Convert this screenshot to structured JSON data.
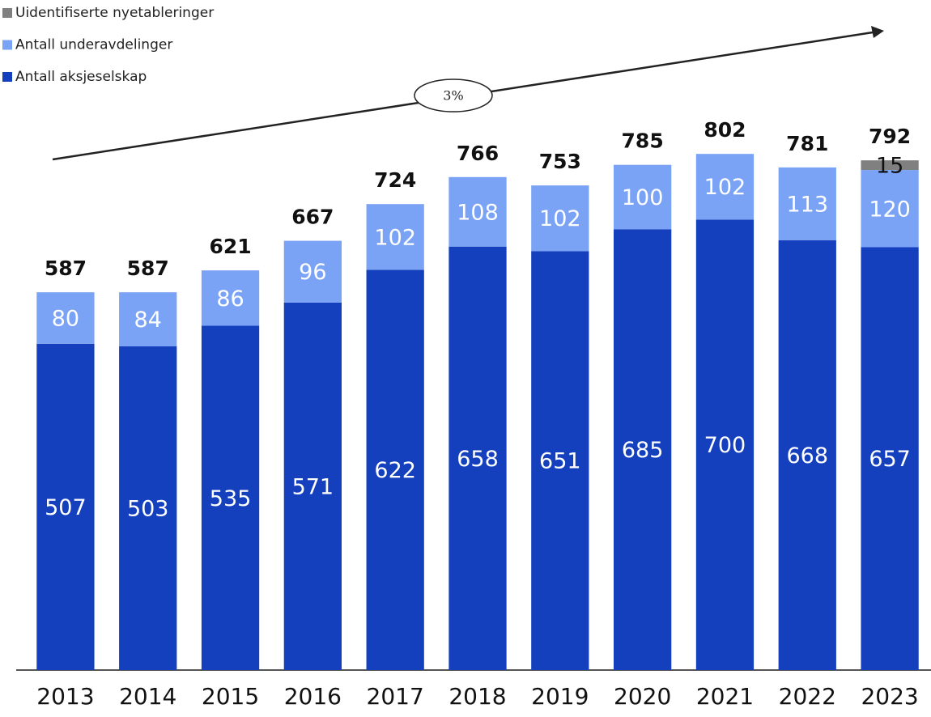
{
  "chart_data": {
    "type": "stacked_bar",
    "categories": [
      "2013",
      "2014",
      "2015",
      "2016",
      "2017",
      "2018",
      "2019",
      "2020",
      "2021",
      "2022",
      "2023"
    ],
    "series": [
      {
        "name": "Antall aksjeselskap",
        "color": "#1440be",
        "label_color": "#ffffff",
        "values": [
          507,
          503,
          535,
          571,
          622,
          658,
          651,
          685,
          700,
          668,
          657
        ]
      },
      {
        "name": "Antall underavdelinger",
        "color": "#7ba3f5",
        "label_color": "#ffffff",
        "values": [
          80,
          84,
          86,
          96,
          102,
          108,
          102,
          100,
          102,
          113,
          120
        ]
      },
      {
        "name": "Uidentifiserte nyetableringer",
        "color": "#808080",
        "label_color": "#111111",
        "values": [
          null,
          null,
          null,
          null,
          null,
          null,
          null,
          null,
          null,
          null,
          15
        ]
      }
    ],
    "totals": [
      587,
      587,
      621,
      667,
      724,
      766,
      753,
      785,
      802,
      781,
      792
    ],
    "annotation": "3%",
    "ylim": [
      0,
      850
    ]
  }
}
